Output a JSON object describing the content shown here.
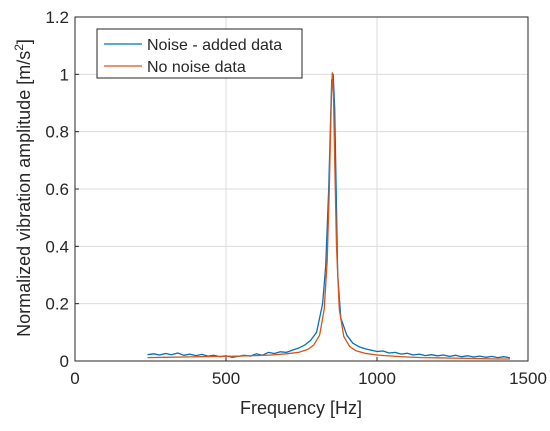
{
  "chart_data": {
    "type": "line",
    "xlabel": "Frequency [Hz]",
    "ylabel_main": "Normalized vibration amplitude [m/s",
    "ylabel_sup": "2",
    "ylabel_end": "]",
    "xlim": [
      0,
      1500
    ],
    "ylim": [
      0,
      1.2
    ],
    "xticks": [
      0,
      500,
      1000,
      1500
    ],
    "yticks": [
      0,
      0.2,
      0.4,
      0.6,
      0.8,
      1,
      1.2
    ],
    "xtick_labels": [
      "0",
      "500",
      "1000",
      "1500"
    ],
    "ytick_labels": [
      "0",
      "0.2",
      "0.4",
      "0.6",
      "0.8",
      "1",
      "1.2"
    ],
    "grid": true,
    "legend_position": "top-left",
    "series": [
      {
        "name": "Noise - added data",
        "color": "#0072BD",
        "x": [
          240,
          260,
          280,
          300,
          320,
          340,
          360,
          380,
          400,
          420,
          440,
          460,
          480,
          500,
          520,
          540,
          560,
          580,
          600,
          620,
          640,
          660,
          680,
          700,
          720,
          740,
          760,
          780,
          800,
          820,
          830,
          840,
          850,
          855,
          860,
          870,
          880,
          900,
          920,
          940,
          960,
          980,
          1000,
          1020,
          1040,
          1060,
          1080,
          1100,
          1120,
          1140,
          1160,
          1180,
          1200,
          1220,
          1240,
          1260,
          1280,
          1300,
          1320,
          1340,
          1360,
          1380,
          1400,
          1420,
          1440
        ],
        "y": [
          0.022,
          0.025,
          0.021,
          0.026,
          0.022,
          0.028,
          0.02,
          0.024,
          0.019,
          0.023,
          0.017,
          0.02,
          0.015,
          0.018,
          0.013,
          0.016,
          0.02,
          0.017,
          0.025,
          0.02,
          0.03,
          0.026,
          0.032,
          0.03,
          0.038,
          0.045,
          0.055,
          0.072,
          0.1,
          0.2,
          0.33,
          0.6,
          0.98,
          1.0,
          0.88,
          0.3,
          0.15,
          0.09,
          0.062,
          0.05,
          0.043,
          0.038,
          0.033,
          0.035,
          0.028,
          0.03,
          0.024,
          0.027,
          0.021,
          0.024,
          0.019,
          0.022,
          0.018,
          0.021,
          0.016,
          0.02,
          0.015,
          0.018,
          0.014,
          0.017,
          0.013,
          0.016,
          0.012,
          0.015,
          0.011
        ]
      },
      {
        "name": "No noise data",
        "color": "#D95319",
        "x": [
          240,
          300,
          360,
          420,
          480,
          540,
          600,
          650,
          700,
          740,
          770,
          790,
          810,
          825,
          835,
          842,
          848,
          852,
          856,
          860,
          866,
          875,
          890,
          910,
          930,
          960,
          1000,
          1050,
          1100,
          1150,
          1200,
          1250,
          1300,
          1350,
          1400,
          1440
        ],
        "y": [
          0.012,
          0.013,
          0.014,
          0.015,
          0.016,
          0.017,
          0.019,
          0.021,
          0.025,
          0.03,
          0.04,
          0.055,
          0.09,
          0.18,
          0.35,
          0.6,
          0.88,
          1.005,
          0.93,
          0.7,
          0.4,
          0.18,
          0.085,
          0.05,
          0.036,
          0.027,
          0.021,
          0.017,
          0.014,
          0.012,
          0.011,
          0.01,
          0.009,
          0.008,
          0.007,
          0.007
        ]
      }
    ]
  }
}
